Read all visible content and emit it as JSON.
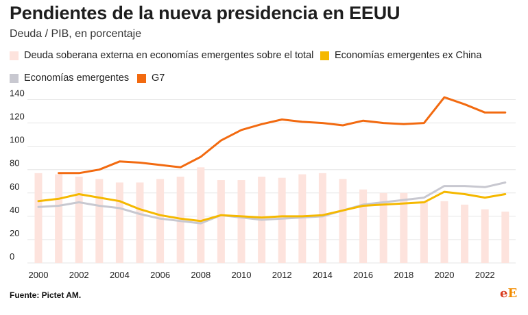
{
  "header": {
    "title": "Pendientes de la nueva presidencia en EEUU",
    "subtitle": "Deuda / PIB, en porcentaje"
  },
  "legend": {
    "items": [
      {
        "label": "Deuda soberana externa en economías emergentes sobre el total",
        "color": "#fde3dd"
      },
      {
        "label": "Economías emergentes ex China",
        "color": "#f5b800"
      },
      {
        "label": "Economías emergentes",
        "color": "#c8c8d0"
      },
      {
        "label": "G7",
        "color": "#f26a10"
      }
    ]
  },
  "chart_data": {
    "type": "bar+line",
    "title": "Pendientes de la nueva presidencia en EEUU",
    "subtitle": "Deuda / PIB, en porcentaje",
    "xlabel": "",
    "ylabel": "",
    "ylim": [
      0,
      140
    ],
    "yticks": [
      0,
      20,
      40,
      60,
      80,
      100,
      120,
      140
    ],
    "xticks": [
      2000,
      2002,
      2004,
      2006,
      2008,
      2010,
      2012,
      2014,
      2016,
      2018,
      2020,
      2022
    ],
    "grid": true,
    "legend_position": "top",
    "years": [
      2000,
      2001,
      2002,
      2003,
      2004,
      2005,
      2006,
      2007,
      2008,
      2009,
      2010,
      2011,
      2012,
      2013,
      2014,
      2015,
      2016,
      2017,
      2018,
      2019,
      2020,
      2021,
      2022,
      2023
    ],
    "bars": {
      "name": "Deuda soberana externa en economías emergentes sobre el total",
      "color": "#fde3dd",
      "values": [
        77,
        76,
        74,
        72,
        69,
        69,
        72,
        74,
        82,
        71,
        71,
        74,
        73,
        76,
        77,
        72,
        63,
        60,
        60,
        53,
        53,
        50,
        46,
        44
      ]
    },
    "series": [
      {
        "name": "G7",
        "color": "#f26a10",
        "start_year": 2001,
        "values": [
          77,
          77,
          80,
          87,
          86,
          84,
          82,
          91,
          105,
          114,
          119,
          123,
          121,
          120,
          118,
          122,
          120,
          119,
          120,
          142,
          136,
          129,
          129
        ]
      },
      {
        "name": "Economías emergentes ex China",
        "color": "#f5b800",
        "start_year": 2000,
        "values": [
          53,
          55,
          59,
          56,
          53,
          46,
          41,
          38,
          36,
          41,
          40,
          39,
          40,
          40,
          41,
          45,
          49,
          50,
          51,
          52,
          61,
          59,
          56,
          59
        ]
      },
      {
        "name": "Economías emergentes",
        "color": "#c8c8d0",
        "start_year": 2000,
        "values": [
          48,
          49,
          52,
          49,
          47,
          42,
          38,
          36,
          34,
          41,
          39,
          37,
          38,
          39,
          40,
          45,
          50,
          52,
          54,
          56,
          66,
          66,
          65,
          69
        ]
      }
    ]
  },
  "footer": {
    "source": "Fuente: Pictet AM.",
    "logo_e": "e",
    "logo_big_e": "E"
  }
}
